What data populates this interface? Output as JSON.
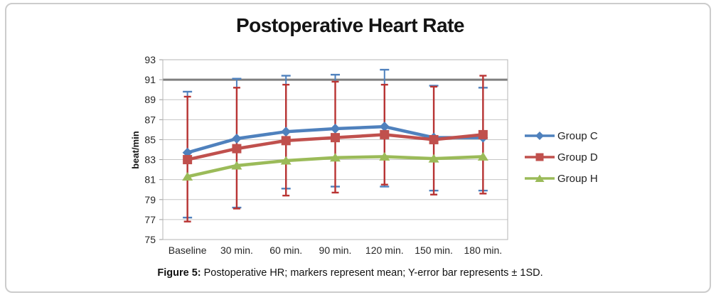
{
  "figure": {
    "title": "Postoperative Heart Rate",
    "caption_prefix": "Figure 5:",
    "caption_text": " Postoperative HR; markers represent mean; Y-error bar represents ± 1SD."
  },
  "chart_data": {
    "type": "line",
    "title": "Postoperative Heart Rate",
    "xlabel": "",
    "ylabel": "beat/min",
    "ylim": [
      75,
      93
    ],
    "ytick_step": 2,
    "reference_line": 91,
    "grid": "horizontal",
    "legend_position": "right",
    "categories": [
      "Baseline",
      "30 min.",
      "60 min.",
      "90 min.",
      "120 min.",
      "150 min.",
      "180 min."
    ],
    "series": [
      {
        "name": "Group C",
        "marker": "diamond",
        "color": "#4F81BD",
        "error_color": "#4F81BD",
        "values": [
          83.7,
          85.1,
          85.8,
          86.1,
          86.3,
          85.2,
          85.2
        ],
        "error_top": [
          89.8,
          91.1,
          91.4,
          91.5,
          92.0,
          90.4,
          90.2
        ],
        "error_bottom": [
          77.2,
          78.2,
          80.1,
          80.3,
          80.3,
          79.9,
          79.9
        ]
      },
      {
        "name": "Group D",
        "marker": "square",
        "color": "#C0504D",
        "error_color": "#B93433",
        "values": [
          83.0,
          84.1,
          84.9,
          85.2,
          85.5,
          85.0,
          85.5
        ],
        "error_top": [
          89.3,
          90.2,
          90.5,
          90.8,
          90.5,
          90.3,
          91.4
        ],
        "error_bottom": [
          76.8,
          78.1,
          79.4,
          79.7,
          80.5,
          79.5,
          79.6
        ]
      },
      {
        "name": "Group H",
        "marker": "triangle",
        "color": "#9BBB59",
        "values": [
          81.3,
          82.4,
          82.9,
          83.2,
          83.3,
          83.1,
          83.3
        ]
      }
    ]
  }
}
